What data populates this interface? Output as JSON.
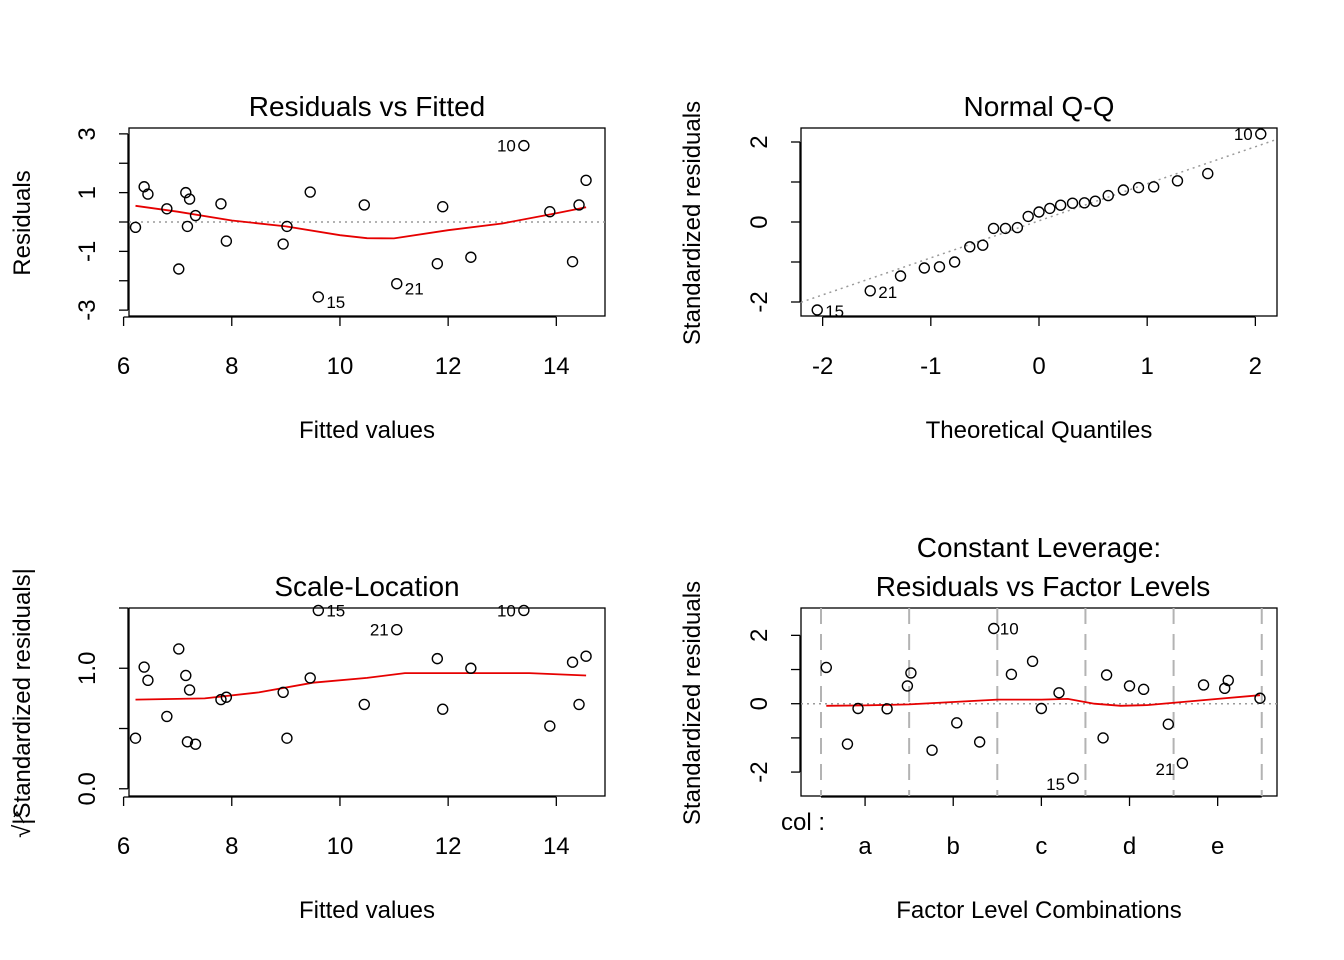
{
  "chart_data": [
    {
      "type": "scatter",
      "title": "Residuals vs Fitted",
      "xlabel": "Fitted values",
      "ylabel": "Residuals",
      "xlim": [
        6.1,
        14.9
      ],
      "ylim": [
        -3.2,
        3.2
      ],
      "xticks": [
        6,
        8,
        10,
        12,
        14
      ],
      "yticks": [
        -3,
        -2,
        -1,
        0,
        1,
        2,
        3
      ],
      "ytick_labels": [
        "-3",
        "",
        "-1",
        "",
        "1",
        "",
        "3"
      ],
      "reference_line_y": 0,
      "points": [
        {
          "x": 6.22,
          "y": -0.18
        },
        {
          "x": 6.38,
          "y": 1.2
        },
        {
          "x": 6.45,
          "y": 0.95
        },
        {
          "x": 6.8,
          "y": 0.45
        },
        {
          "x": 7.02,
          "y": -1.6
        },
        {
          "x": 7.15,
          "y": 1.0
        },
        {
          "x": 7.18,
          "y": -0.15
        },
        {
          "x": 7.22,
          "y": 0.78
        },
        {
          "x": 7.33,
          "y": 0.22
        },
        {
          "x": 7.8,
          "y": 0.62
        },
        {
          "x": 7.9,
          "y": -0.65
        },
        {
          "x": 8.95,
          "y": -0.75
        },
        {
          "x": 9.02,
          "y": -0.15
        },
        {
          "x": 9.45,
          "y": 1.02
        },
        {
          "x": 9.6,
          "y": -2.55,
          "label": "15"
        },
        {
          "x": 10.45,
          "y": 0.58
        },
        {
          "x": 11.05,
          "y": -2.1,
          "label": "21"
        },
        {
          "x": 11.8,
          "y": -1.42
        },
        {
          "x": 11.9,
          "y": 0.52
        },
        {
          "x": 12.42,
          "y": -1.2
        },
        {
          "x": 13.4,
          "y": 2.6,
          "label": "10"
        },
        {
          "x": 13.88,
          "y": 0.35
        },
        {
          "x": 14.3,
          "y": -1.35
        },
        {
          "x": 14.42,
          "y": 0.58
        },
        {
          "x": 14.55,
          "y": 1.42
        }
      ],
      "smooth": [
        {
          "x": 6.22,
          "y": 0.55
        },
        {
          "x": 7.0,
          "y": 0.35
        },
        {
          "x": 8.0,
          "y": 0.05
        },
        {
          "x": 9.0,
          "y": -0.15
        },
        {
          "x": 10.0,
          "y": -0.45
        },
        {
          "x": 10.5,
          "y": -0.55
        },
        {
          "x": 11.0,
          "y": -0.56
        },
        {
          "x": 12.0,
          "y": -0.28
        },
        {
          "x": 13.0,
          "y": -0.05
        },
        {
          "x": 14.0,
          "y": 0.3
        },
        {
          "x": 14.55,
          "y": 0.5
        }
      ]
    },
    {
      "type": "scatter",
      "title": "Normal Q-Q",
      "xlabel": "Theoretical Quantiles",
      "ylabel": "Standardized residuals",
      "xlim": [
        -2.2,
        2.2
      ],
      "ylim": [
        -2.35,
        2.35
      ],
      "xticks": [
        -2,
        -1,
        0,
        1,
        2
      ],
      "yticks": [
        -2,
        -1,
        0,
        1,
        2
      ],
      "ytick_labels": [
        "-2",
        "",
        "0",
        "",
        "2"
      ],
      "reference_line": {
        "x1": -2.3,
        "y1": -2.1,
        "x2": 2.3,
        "y2": 2.16
      },
      "points": [
        {
          "x": -2.05,
          "y": -2.2,
          "label": "15"
        },
        {
          "x": -1.56,
          "y": -1.72,
          "label": "21"
        },
        {
          "x": -1.28,
          "y": -1.35
        },
        {
          "x": -1.06,
          "y": -1.15
        },
        {
          "x": -0.92,
          "y": -1.12
        },
        {
          "x": -0.78,
          "y": -1.0
        },
        {
          "x": -0.64,
          "y": -0.62
        },
        {
          "x": -0.52,
          "y": -0.58
        },
        {
          "x": -0.42,
          "y": -0.16
        },
        {
          "x": -0.31,
          "y": -0.16
        },
        {
          "x": -0.2,
          "y": -0.14
        },
        {
          "x": -0.1,
          "y": 0.14
        },
        {
          "x": 0.0,
          "y": 0.25
        },
        {
          "x": 0.1,
          "y": 0.34
        },
        {
          "x": 0.2,
          "y": 0.42
        },
        {
          "x": 0.31,
          "y": 0.47
        },
        {
          "x": 0.42,
          "y": 0.48
        },
        {
          "x": 0.52,
          "y": 0.52
        },
        {
          "x": 0.64,
          "y": 0.66
        },
        {
          "x": 0.78,
          "y": 0.8
        },
        {
          "x": 0.92,
          "y": 0.86
        },
        {
          "x": 1.06,
          "y": 0.88
        },
        {
          "x": 1.28,
          "y": 1.03
        },
        {
          "x": 1.56,
          "y": 1.21
        },
        {
          "x": 2.05,
          "y": 2.2,
          "label": "10"
        }
      ]
    },
    {
      "type": "scatter",
      "title": "Scale-Location",
      "xlabel": "Fitted values",
      "ylabel": "√|Standardized residuals|",
      "xlim": [
        6.1,
        14.9
      ],
      "ylim": [
        -0.06,
        1.5
      ],
      "xticks": [
        6,
        8,
        10,
        12,
        14
      ],
      "yticks": [
        0.0,
        0.5,
        1.0,
        1.5
      ],
      "ytick_labels": [
        "0.0",
        "",
        "1.0",
        ""
      ],
      "points": [
        {
          "x": 6.22,
          "y": 0.42
        },
        {
          "x": 6.38,
          "y": 1.01
        },
        {
          "x": 6.45,
          "y": 0.9
        },
        {
          "x": 6.8,
          "y": 0.6
        },
        {
          "x": 7.02,
          "y": 1.16
        },
        {
          "x": 7.15,
          "y": 0.94
        },
        {
          "x": 7.18,
          "y": 0.39
        },
        {
          "x": 7.22,
          "y": 0.82
        },
        {
          "x": 7.33,
          "y": 0.37
        },
        {
          "x": 7.8,
          "y": 0.74
        },
        {
          "x": 7.9,
          "y": 0.76
        },
        {
          "x": 8.95,
          "y": 0.8
        },
        {
          "x": 9.02,
          "y": 0.42
        },
        {
          "x": 9.45,
          "y": 0.92
        },
        {
          "x": 9.6,
          "y": 1.48,
          "label": "15"
        },
        {
          "x": 10.45,
          "y": 0.7
        },
        {
          "x": 11.05,
          "y": 1.32,
          "label": "21"
        },
        {
          "x": 11.8,
          "y": 1.08
        },
        {
          "x": 11.9,
          "y": 0.66
        },
        {
          "x": 12.42,
          "y": 1.0
        },
        {
          "x": 13.4,
          "y": 1.48,
          "label": "10"
        },
        {
          "x": 13.88,
          "y": 0.52
        },
        {
          "x": 14.3,
          "y": 1.05
        },
        {
          "x": 14.42,
          "y": 0.7
        },
        {
          "x": 14.55,
          "y": 1.1
        }
      ],
      "smooth": [
        {
          "x": 6.22,
          "y": 0.74
        },
        {
          "x": 7.5,
          "y": 0.75
        },
        {
          "x": 8.5,
          "y": 0.8
        },
        {
          "x": 9.5,
          "y": 0.88
        },
        {
          "x": 10.5,
          "y": 0.92
        },
        {
          "x": 11.2,
          "y": 0.96
        },
        {
          "x": 12.5,
          "y": 0.96
        },
        {
          "x": 13.5,
          "y": 0.96
        },
        {
          "x": 14.55,
          "y": 0.94
        }
      ]
    },
    {
      "type": "scatter",
      "title": "Constant Leverage:",
      "subtitle": "Residuals vs Factor Levels",
      "xlabel": "Factor Level Combinations",
      "ylabel": "Standardized residuals",
      "factor_label": "col :",
      "categories": [
        "a",
        "b",
        "c",
        "d",
        "e"
      ],
      "xlim": [
        0.0,
        5.4
      ],
      "ylim": [
        -2.7,
        2.8
      ],
      "yticks": [
        -2,
        -1,
        0,
        1,
        2
      ],
      "ytick_labels": [
        "-2",
        "",
        "0",
        "",
        "2"
      ],
      "separators": [
        0.0,
        1.0,
        2.0,
        3.0,
        4.0,
        5.0
      ],
      "reference_line_y": 0,
      "points": [
        {
          "x": 0.06,
          "y": 1.06
        },
        {
          "x": 0.3,
          "y": -1.18
        },
        {
          "x": 0.42,
          "y": -0.14
        },
        {
          "x": 0.75,
          "y": -0.15
        },
        {
          "x": 0.98,
          "y": 0.52
        },
        {
          "x": 1.02,
          "y": 0.9
        },
        {
          "x": 1.26,
          "y": -1.36
        },
        {
          "x": 1.54,
          "y": -0.56
        },
        {
          "x": 1.8,
          "y": -1.12
        },
        {
          "x": 1.96,
          "y": 2.2,
          "label": "10"
        },
        {
          "x": 2.16,
          "y": 0.86
        },
        {
          "x": 2.4,
          "y": 1.24
        },
        {
          "x": 2.5,
          "y": -0.14
        },
        {
          "x": 2.7,
          "y": 0.32
        },
        {
          "x": 2.86,
          "y": -2.18,
          "label": "15"
        },
        {
          "x": 3.2,
          "y": -1.0
        },
        {
          "x": 3.24,
          "y": 0.84
        },
        {
          "x": 3.5,
          "y": 0.52
        },
        {
          "x": 3.66,
          "y": 0.42
        },
        {
          "x": 3.94,
          "y": -0.6
        },
        {
          "x": 4.1,
          "y": -1.74,
          "label": "21"
        },
        {
          "x": 4.34,
          "y": 0.55
        },
        {
          "x": 4.58,
          "y": 0.45
        },
        {
          "x": 4.62,
          "y": 0.68
        },
        {
          "x": 4.98,
          "y": 0.16
        }
      ],
      "smooth": [
        {
          "x": 0.06,
          "y": -0.06
        },
        {
          "x": 0.5,
          "y": -0.05
        },
        {
          "x": 1.0,
          "y": -0.02
        },
        {
          "x": 1.5,
          "y": 0.05
        },
        {
          "x": 2.0,
          "y": 0.12
        },
        {
          "x": 2.5,
          "y": 0.12
        },
        {
          "x": 2.8,
          "y": 0.14
        },
        {
          "x": 3.1,
          "y": 0.0
        },
        {
          "x": 3.4,
          "y": -0.06
        },
        {
          "x": 3.7,
          "y": -0.04
        },
        {
          "x": 4.1,
          "y": 0.05
        },
        {
          "x": 4.5,
          "y": 0.14
        },
        {
          "x": 4.98,
          "y": 0.25
        }
      ]
    }
  ]
}
